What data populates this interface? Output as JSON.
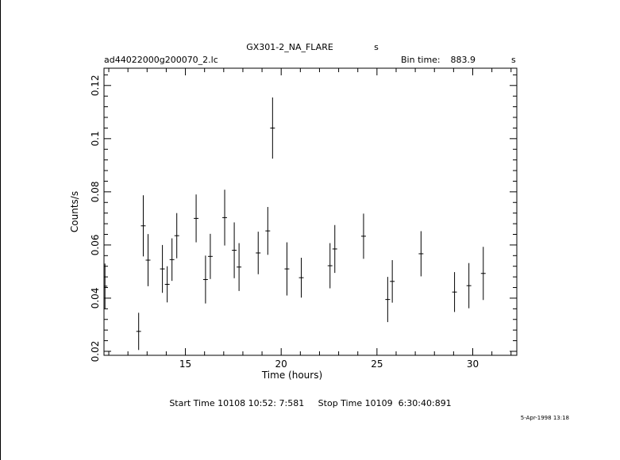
{
  "header": {
    "object_title": "GX301-2_NA_FLARE",
    "object_unit": "s",
    "filename": "ad44022000g200070_2.lc",
    "bin_time_label": "Bin time:",
    "bin_time_value": "883.9",
    "bin_time_unit": "s"
  },
  "footer": {
    "start_stop": "Start Time 10108 10:52: 7:581     Stop Time 10109  6:30:40:891",
    "date_stamp": "5-Apr-1998 13:18"
  },
  "chart_data": {
    "type": "scatter",
    "xlabel": "Time (hours)",
    "ylabel": "Counts/s",
    "xlim": [
      10.75,
      32.3
    ],
    "ylim": [
      0.0185,
      0.1265
    ],
    "xticks": [
      15,
      20,
      25,
      30
    ],
    "xtick_labels": [
      "15",
      "20",
      "25",
      "30"
    ],
    "yticks": [
      0.02,
      0.04,
      0.06,
      0.08,
      0.1,
      0.12
    ],
    "ytick_labels": [
      "0.02",
      "0.04",
      "0.06",
      "0.08",
      "0.1",
      "0.12"
    ],
    "x_half_width": 0.123,
    "points": [
      {
        "x": 10.8,
        "y": 0.0445,
        "yerr": 0.0085
      },
      {
        "x": 12.56,
        "y": 0.0275,
        "yerr": 0.007
      },
      {
        "x": 12.8,
        "y": 0.0672,
        "yerr": 0.0115
      },
      {
        "x": 13.05,
        "y": 0.0543,
        "yerr": 0.0098
      },
      {
        "x": 13.8,
        "y": 0.051,
        "yerr": 0.009
      },
      {
        "x": 14.05,
        "y": 0.0452,
        "yerr": 0.0068
      },
      {
        "x": 14.3,
        "y": 0.0545,
        "yerr": 0.008
      },
      {
        "x": 14.55,
        "y": 0.0635,
        "yerr": 0.0085
      },
      {
        "x": 15.56,
        "y": 0.07,
        "yerr": 0.009
      },
      {
        "x": 16.05,
        "y": 0.047,
        "yerr": 0.009
      },
      {
        "x": 16.3,
        "y": 0.0557,
        "yerr": 0.0085
      },
      {
        "x": 17.05,
        "y": 0.0703,
        "yerr": 0.0105
      },
      {
        "x": 17.55,
        "y": 0.058,
        "yerr": 0.0105
      },
      {
        "x": 17.8,
        "y": 0.0517,
        "yerr": 0.009
      },
      {
        "x": 18.8,
        "y": 0.057,
        "yerr": 0.008
      },
      {
        "x": 19.3,
        "y": 0.0653,
        "yerr": 0.009
      },
      {
        "x": 19.55,
        "y": 0.104,
        "yerr": 0.0115
      },
      {
        "x": 20.3,
        "y": 0.051,
        "yerr": 0.01
      },
      {
        "x": 21.05,
        "y": 0.0477,
        "yerr": 0.0075
      },
      {
        "x": 22.55,
        "y": 0.0522,
        "yerr": 0.0085
      },
      {
        "x": 22.8,
        "y": 0.0585,
        "yerr": 0.009
      },
      {
        "x": 24.3,
        "y": 0.0633,
        "yerr": 0.0085
      },
      {
        "x": 25.56,
        "y": 0.0395,
        "yerr": 0.0085
      },
      {
        "x": 25.8,
        "y": 0.0463,
        "yerr": 0.008
      },
      {
        "x": 27.3,
        "y": 0.0567,
        "yerr": 0.0085
      },
      {
        "x": 29.05,
        "y": 0.0423,
        "yerr": 0.0075
      },
      {
        "x": 29.8,
        "y": 0.0447,
        "yerr": 0.0085
      },
      {
        "x": 30.55,
        "y": 0.0493,
        "yerr": 0.01
      }
    ]
  }
}
